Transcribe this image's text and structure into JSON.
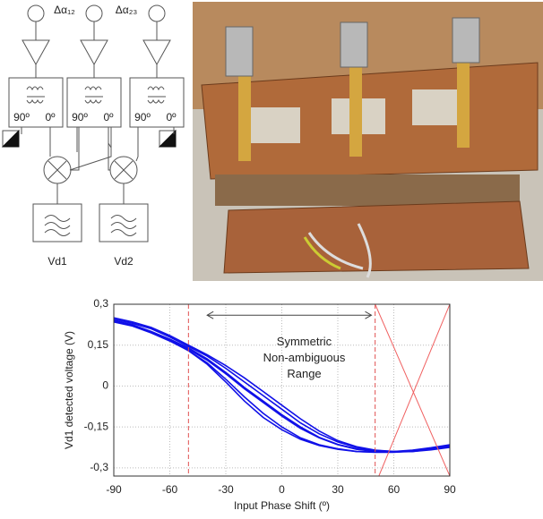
{
  "diagram": {
    "phase_labels": [
      "Δα₁₂",
      "Δα₂₃"
    ],
    "hybrids": [
      {
        "left": "90º",
        "right": "0º"
      },
      {
        "left": "90º",
        "right": "0º"
      },
      {
        "left": "90º",
        "right": "0º"
      }
    ],
    "outputs": [
      "Vd1",
      "Vd2"
    ]
  },
  "chart_data": {
    "type": "line",
    "x_label": "Input Phase Shift (º)",
    "y_label": "Vd1 detected voltage (V)",
    "annotation": [
      "Symmetric",
      "Non-ambiguous",
      "Range"
    ],
    "arrow_x": [
      -40,
      48
    ],
    "arrow_y": 0.26,
    "vlines": [
      -50,
      50
    ],
    "vline_color": "#e05050",
    "x": [
      -90,
      -80,
      -70,
      -60,
      -50,
      -40,
      -30,
      -20,
      -10,
      0,
      10,
      20,
      30,
      40,
      50,
      60,
      70,
      80,
      90
    ],
    "series": [
      {
        "color": "#1010e8",
        "values": [
          0.24,
          0.225,
          0.2,
          0.17,
          0.135,
          0.095,
          0.045,
          -0.01,
          -0.06,
          -0.11,
          -0.155,
          -0.19,
          -0.215,
          -0.232,
          -0.24,
          -0.242,
          -0.24,
          -0.232,
          -0.222
        ]
      },
      {
        "color": "#1010e8",
        "values": [
          0.235,
          0.22,
          0.195,
          0.165,
          0.13,
          0.085,
          0.025,
          -0.04,
          -0.1,
          -0.15,
          -0.19,
          -0.215,
          -0.23,
          -0.24,
          -0.243,
          -0.243,
          -0.238,
          -0.228,
          -0.218
        ]
      },
      {
        "color": "#1010e8",
        "values": [
          0.245,
          0.23,
          0.21,
          0.18,
          0.145,
          0.11,
          0.065,
          0.015,
          -0.035,
          -0.085,
          -0.135,
          -0.175,
          -0.205,
          -0.225,
          -0.236,
          -0.24,
          -0.238,
          -0.23,
          -0.22
        ]
      },
      {
        "color": "#1010e8",
        "values": [
          0.24,
          0.222,
          0.198,
          0.168,
          0.13,
          0.08,
          0.015,
          -0.055,
          -0.115,
          -0.16,
          -0.195,
          -0.218,
          -0.232,
          -0.24,
          -0.242,
          -0.24,
          -0.235,
          -0.226,
          -0.215
        ]
      },
      {
        "color": "#1010e8",
        "values": [
          0.25,
          0.235,
          0.215,
          0.185,
          0.15,
          0.115,
          0.075,
          0.03,
          -0.02,
          -0.07,
          -0.12,
          -0.165,
          -0.2,
          -0.222,
          -0.235,
          -0.24,
          -0.24,
          -0.234,
          -0.225
        ]
      },
      {
        "color": "#1010e8",
        "values": [
          0.238,
          0.224,
          0.2,
          0.172,
          0.14,
          0.1,
          0.05,
          -0.005,
          -0.055,
          -0.105,
          -0.15,
          -0.188,
          -0.214,
          -0.23,
          -0.238,
          -0.241,
          -0.239,
          -0.231,
          -0.221
        ]
      }
    ],
    "red_lines": [
      {
        "color": "#f06060",
        "x": [
          50,
          90
        ],
        "values": [
          0.3,
          -0.33
        ]
      },
      {
        "color": "#f06060",
        "x": [
          52,
          90
        ],
        "values": [
          -0.33,
          0.3
        ]
      }
    ],
    "xlim": [
      -90,
      90
    ],
    "xticks": [
      -90,
      -60,
      -30,
      0,
      30,
      60,
      90
    ],
    "ylim": [
      -0.33,
      0.3
    ],
    "yticks": [
      {
        "value": 0.3,
        "label": "0,3"
      },
      {
        "value": 0.15,
        "label": "0,15"
      },
      {
        "value": 0,
        "label": "0"
      },
      {
        "value": -0.15,
        "label": "-0,15"
      },
      {
        "value": -0.3,
        "label": "-0,3"
      }
    ],
    "grid": true
  }
}
